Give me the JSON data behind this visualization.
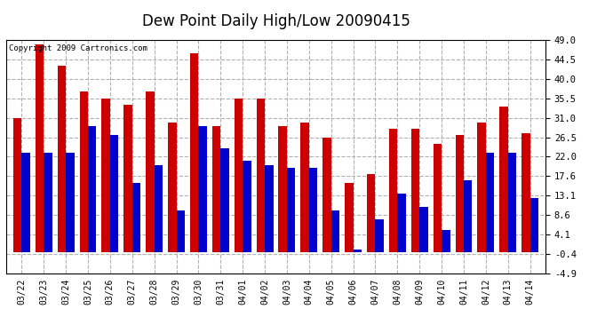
{
  "title": "Dew Point Daily High/Low 20090415",
  "copyright": "Copyright 2009 Cartronics.com",
  "dates": [
    "03/22",
    "03/23",
    "03/24",
    "03/25",
    "03/26",
    "03/27",
    "03/28",
    "03/29",
    "03/30",
    "03/31",
    "04/01",
    "04/02",
    "04/03",
    "04/04",
    "04/05",
    "04/06",
    "04/07",
    "04/08",
    "04/09",
    "04/10",
    "04/11",
    "04/12",
    "04/13",
    "04/14"
  ],
  "high": [
    31.0,
    48.0,
    43.0,
    37.0,
    35.5,
    34.0,
    37.0,
    30.0,
    46.0,
    29.0,
    35.5,
    35.5,
    29.0,
    30.0,
    26.5,
    16.0,
    18.0,
    28.5,
    28.5,
    25.0,
    27.0,
    30.0,
    33.5,
    27.5
  ],
  "low": [
    23.0,
    23.0,
    23.0,
    29.0,
    27.0,
    16.0,
    20.0,
    9.5,
    29.0,
    24.0,
    21.0,
    20.0,
    19.5,
    19.5,
    9.5,
    0.5,
    7.5,
    13.5,
    10.5,
    5.0,
    16.5,
    23.0,
    23.0,
    12.5
  ],
  "high_color": "#cc0000",
  "low_color": "#0000cc",
  "ylim_min": -4.9,
  "ylim_max": 49.0,
  "yticks": [
    -4.9,
    -0.4,
    4.1,
    8.6,
    13.1,
    17.6,
    22.0,
    26.5,
    31.0,
    35.5,
    40.0,
    44.5,
    49.0
  ],
  "background_color": "#ffffff",
  "plot_bg_color": "#ffffff",
  "grid_color": "#b0b0b0",
  "title_fontsize": 12,
  "bar_width": 0.38
}
